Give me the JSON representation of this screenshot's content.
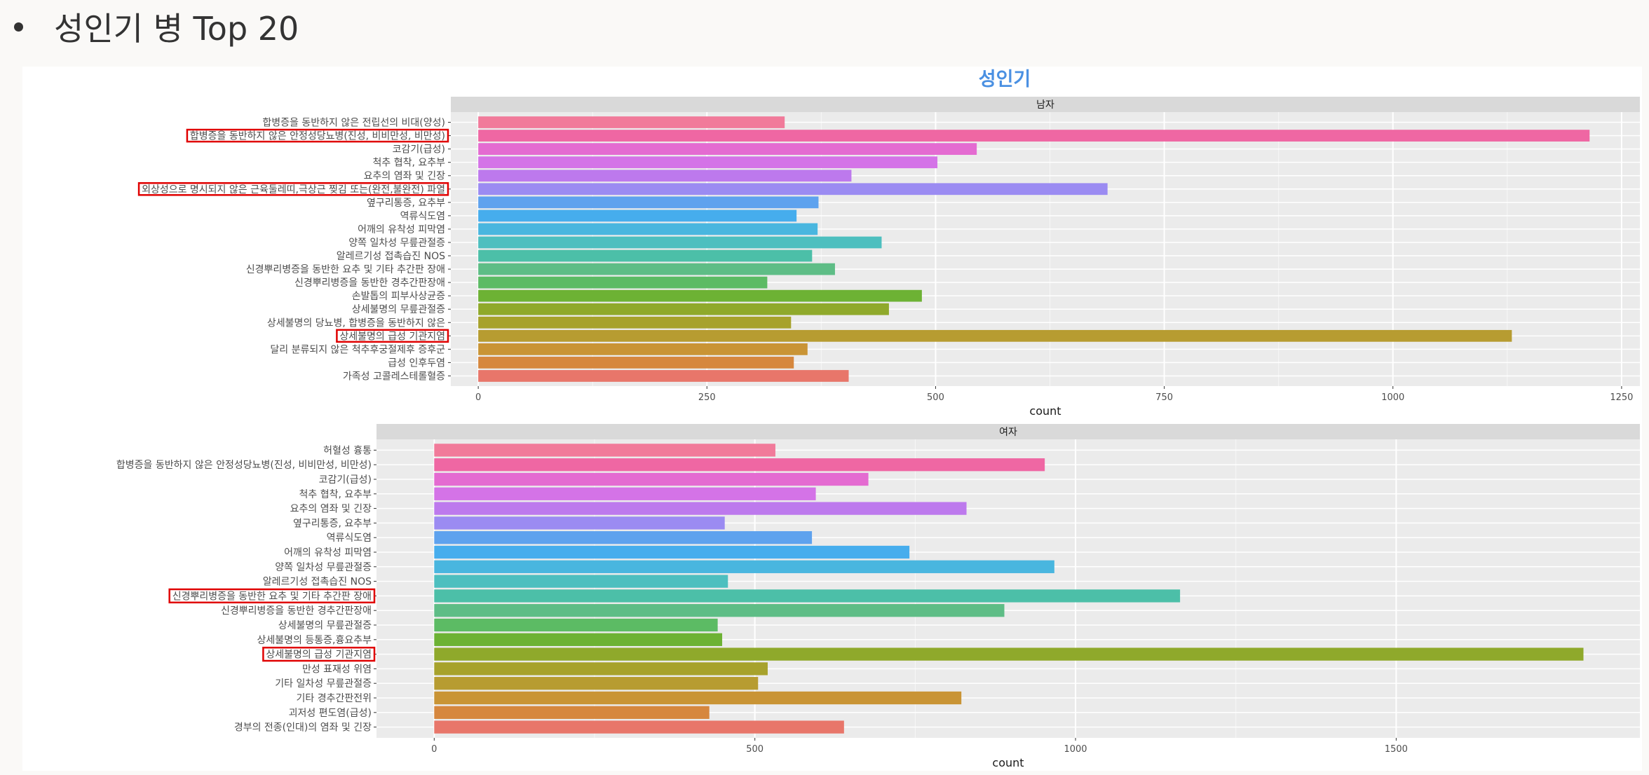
{
  "slide": {
    "heading": "성인기 병 Top 20"
  },
  "chart_data": {
    "type": "bar",
    "orientation": "horizontal",
    "title": "성인기",
    "title_color": "#4a90e2",
    "grid": true,
    "panel_background": "#ebebeb",
    "strip_background": "#d9d9d9",
    "highlight_color": "#e00000",
    "facets": [
      {
        "strip": "남자",
        "xlabel": "count",
        "xlim": [
          -30,
          1270
        ],
        "xticks": [
          0,
          250,
          500,
          750,
          1000,
          1250
        ],
        "categories": [
          "합병증을 동반하지 않은 전립선의 비대(양성)",
          "합병증을 동반하지 않은 안정성당뇨병(진성, 비비만성, 비만성)",
          "코감기(급성)",
          "척추 협착, 요추부",
          "요추의 염좌 및 긴장",
          "외상성으로 명시되지 않은 근육둘레띠,극상근 찢김 또는(완전,불완전) 파열",
          "옆구리통증, 요추부",
          "역류식도염",
          "어깨의 유착성 피막염",
          "양쪽 일차성 무릎관절증",
          "알레르기성 접촉습진 NOS",
          "신경뿌리병증을 동반한 요추 및 기타 추간판 장애",
          "신경뿌리병증을 동반한 경추간판장애",
          "손발톱의 피부사상균증",
          "상세불명의 무릎관절증",
          "상세불명의 당뇨병, 합병증을 동반하지 않은",
          "상세불명의 급성 기관지염",
          "달리 분류되지 않은 척추후궁절제후 증후군",
          "급성 인후두염",
          "가족성 고콜레스테롤혈증"
        ],
        "values": [
          335,
          1215,
          545,
          502,
          408,
          688,
          372,
          348,
          371,
          441,
          365,
          390,
          316,
          485,
          449,
          342,
          1130,
          360,
          345,
          405
        ],
        "highlighted": [
          1,
          5,
          16
        ],
        "colors": [
          "#f17a9a",
          "#ef67a3",
          "#e46bd1",
          "#d473e7",
          "#bd79ed",
          "#9b8bf2",
          "#5ea2ee",
          "#46aded",
          "#49b6df",
          "#4dbfbf",
          "#4cbfa8",
          "#5ebd86",
          "#5cbb64",
          "#6db234",
          "#8fa92b",
          "#a7a22c",
          "#b79c31",
          "#c99435",
          "#d6873e",
          "#e8766a"
        ]
      },
      {
        "strip": "여자",
        "xlabel": "count",
        "xlim": [
          -90,
          1880
        ],
        "xticks": [
          0,
          500,
          1000,
          1500
        ],
        "categories": [
          "허혈성 흉통",
          "합병증을 동반하지 않은 안정성당뇨병(진성, 비비만성, 비만성)",
          "코감기(급성)",
          "척추 협착, 요추부",
          "요추의 염좌 및 긴장",
          "옆구리통증, 요추부",
          "역류식도염",
          "어깨의 유착성 피막염",
          "양쪽 일차성 무릎관절증",
          "알레르기성 접촉습진 NOS",
          "신경뿌리병증을 동반한 요추 및 기타 추간판 장애",
          "신경뿌리병증을 동반한 경추간판장애",
          "상세불명의 무릎관절증",
          "상세불명의 등통증,흉요추부",
          "상세불명의 급성 기관지염",
          "만성 표재성 위염",
          "기타 일차성 무릎관절증",
          "기타 경추간판전위",
          "괴저성 편도염(급성)",
          "경부의 전종(인대)의 염좌 및 긴장"
        ],
        "values": [
          532,
          952,
          677,
          595,
          830,
          453,
          589,
          741,
          967,
          458,
          1163,
          889,
          442,
          449,
          1792,
          520,
          505,
          822,
          429,
          639
        ],
        "highlighted": [
          10,
          14
        ],
        "colors": [
          "#f17a9a",
          "#ef67a3",
          "#e46bd1",
          "#d473e7",
          "#bd79ed",
          "#9b8bf2",
          "#5ea2ee",
          "#46aded",
          "#49b6df",
          "#4dbfbf",
          "#4cbfa8",
          "#5ebd86",
          "#5cbb64",
          "#6db234",
          "#8fa92b",
          "#a7a22c",
          "#b79c31",
          "#c99435",
          "#d6873e",
          "#e8766a"
        ]
      }
    ]
  }
}
